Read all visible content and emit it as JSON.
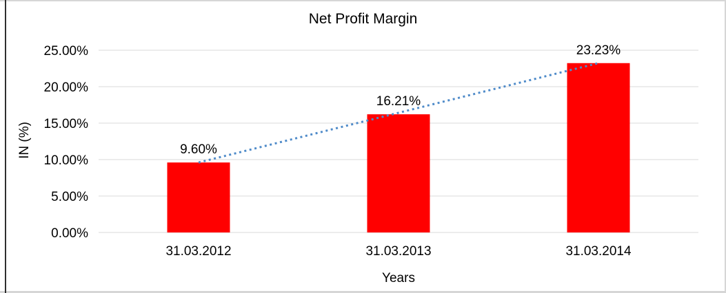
{
  "frame": {
    "background": "#ffffff",
    "outer_border_color": "#d6d6d6",
    "left_edge_color": "#2f2f2f"
  },
  "chart_data": {
    "type": "bar",
    "title": "Net Profit Margin",
    "xlabel": "Years",
    "ylabel": "IN (%)",
    "categories": [
      "31.03.2012",
      "31.03.2013",
      "31.03.2014"
    ],
    "series": [
      {
        "name": "Net Profit Margin",
        "values": [
          9.6,
          16.21,
          23.23
        ],
        "labels": [
          "9.60%",
          "16.21%",
          "23.23%"
        ],
        "color": "#ff0000"
      }
    ],
    "trendline": {
      "type": "linear",
      "style": "dotted",
      "color": "#4f8bc9",
      "start_value": 9.6,
      "end_value": 23.23
    },
    "y_axis": {
      "min": 0,
      "max": 25,
      "tick_step": 5,
      "tick_labels": [
        "0.00%",
        "5.00%",
        "10.00%",
        "15.00%",
        "20.00%",
        "25.00%"
      ],
      "unit": "%"
    },
    "grid": true,
    "gridline_color": "#d9d9d9",
    "legend": "none",
    "text_color": "#000000"
  }
}
